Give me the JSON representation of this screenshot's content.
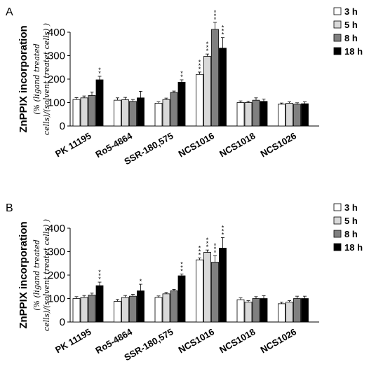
{
  "chart_data": [
    {
      "panel_label": "A",
      "type": "bar",
      "ylabel_main": "ZnPPIX incorporation",
      "ylabel_sub_1": "(% (ligand treated",
      "ylabel_sub_2": "cells)/(solvent treatet cells) )",
      "ylim": [
        0,
        400
      ],
      "yticks": [
        "0",
        "100",
        "200",
        "300",
        "400"
      ],
      "categories": [
        "PK 11195",
        "Ro5-4864",
        "SSR-180,575",
        "NCS1016",
        "NCS1018",
        "NCS1026"
      ],
      "series": [
        {
          "name": "3 h",
          "values": [
            113,
            110,
            97,
            220,
            100,
            93
          ],
          "errors": [
            8,
            10,
            6,
            10,
            7,
            5
          ],
          "sig": [
            "",
            "",
            "",
            "***",
            "",
            ""
          ]
        },
        {
          "name": "5 h",
          "values": [
            120,
            112,
            113,
            297,
            100,
            97
          ],
          "errors": [
            8,
            10,
            6,
            10,
            6,
            6
          ],
          "sig": [
            "",
            "",
            "",
            "***",
            "",
            ""
          ]
        },
        {
          "name": "8 h",
          "values": [
            130,
            105,
            143,
            412,
            110,
            93
          ],
          "errors": [
            15,
            8,
            6,
            30,
            10,
            6
          ],
          "sig": [
            "",
            "",
            "",
            "***",
            "",
            ""
          ]
        },
        {
          "name": "18 h",
          "values": [
            197,
            120,
            187,
            332,
            105,
            95
          ],
          "errors": [
            15,
            28,
            10,
            45,
            10,
            8
          ],
          "sig": [
            "**",
            "",
            "**",
            "***",
            "",
            ""
          ]
        }
      ],
      "colors": [
        "#ffffff",
        "#d9d9d9",
        "#808080",
        "#000000"
      ],
      "legend_position": "top-right",
      "grid": false
    },
    {
      "panel_label": "B",
      "type": "bar",
      "ylabel_main": "ZnPPIX incorporation",
      "ylabel_sub_1": "(% (ligand treated",
      "ylabel_sub_2": "cells)/(solvent treatet cells) )",
      "ylim": [
        0,
        400
      ],
      "yticks": [
        "0",
        "100",
        "200",
        "300",
        "400"
      ],
      "categories": [
        "PK 11195",
        "Ro5-4864",
        "SSR-180,575",
        "NCS1016",
        "NCS1018",
        "NCS1026"
      ],
      "series": [
        {
          "name": "3 h",
          "values": [
            100,
            88,
            105,
            265,
            95,
            78
          ],
          "errors": [
            8,
            8,
            6,
            8,
            8,
            6
          ],
          "sig": [
            "",
            "",
            "",
            "***",
            "",
            ""
          ]
        },
        {
          "name": "5 h",
          "values": [
            105,
            105,
            120,
            297,
            85,
            85
          ],
          "errors": [
            8,
            8,
            6,
            10,
            6,
            6
          ],
          "sig": [
            "",
            "",
            "",
            "***",
            "",
            ""
          ]
        },
        {
          "name": "8 h",
          "values": [
            115,
            110,
            133,
            255,
            100,
            100
          ],
          "errors": [
            8,
            8,
            6,
            28,
            8,
            10
          ],
          "sig": [
            "",
            "",
            "",
            "***",
            "",
            ""
          ]
        },
        {
          "name": "18 h",
          "values": [
            155,
            133,
            197,
            315,
            100,
            100
          ],
          "errors": [
            15,
            28,
            8,
            45,
            12,
            10
          ],
          "sig": [
            "***",
            "*",
            "***",
            "***",
            "",
            ""
          ]
        }
      ],
      "colors": [
        "#ffffff",
        "#d9d9d9",
        "#808080",
        "#000000"
      ],
      "legend_position": "top-right",
      "grid": false
    }
  ]
}
